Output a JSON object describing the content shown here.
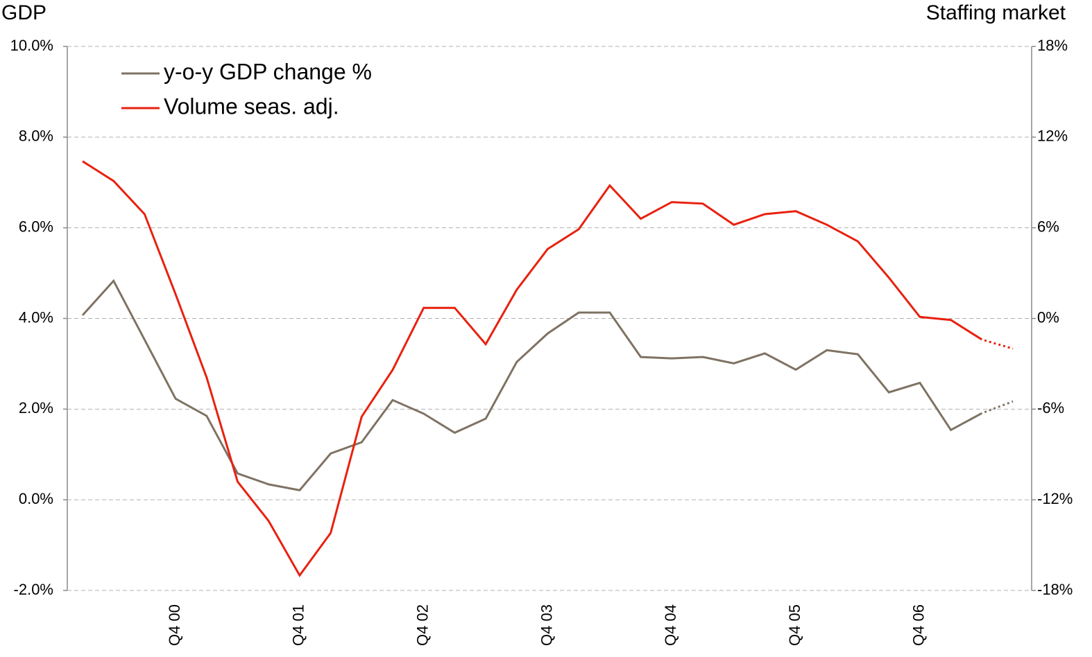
{
  "chart_data": {
    "type": "line",
    "y_title": "GDP",
    "y2_title": "Staffing market",
    "categories": [
      null,
      null,
      null,
      "Q4 00",
      null,
      null,
      null,
      "Q4 01",
      null,
      null,
      null,
      "Q4 02",
      null,
      null,
      null,
      "Q4 03",
      null,
      null,
      null,
      "Q4 04",
      null,
      null,
      null,
      "Q4 05",
      null,
      null,
      null,
      "Q4 06",
      null,
      null,
      null
    ],
    "series": [
      {
        "name": "y-o-y GDP change %",
        "color": "#7f7263",
        "values": [
          4.07,
          4.83,
          3.53,
          2.23,
          1.85,
          0.58,
          0.34,
          0.21,
          1.02,
          1.27,
          2.2,
          1.9,
          1.48,
          1.79,
          3.04,
          3.67,
          4.13,
          4.13,
          3.15,
          3.12,
          3.15,
          3.01,
          3.23,
          2.87,
          3.3,
          3.21,
          2.37,
          2.58,
          1.54,
          1.91,
          2.17
        ]
      },
      {
        "name": "Volume seas. adj.",
        "color": "#e8210f",
        "axis": "y2",
        "values": [
          10.4,
          9.1,
          6.9,
          1.6,
          -3.9,
          -10.8,
          -13.4,
          -17.0,
          -14.2,
          -6.5,
          -3.4,
          0.7,
          0.7,
          -1.7,
          1.9,
          4.6,
          5.9,
          8.8,
          6.6,
          7.7,
          7.6,
          6.2,
          6.9,
          7.1,
          6.2,
          5.1,
          2.7,
          0.1,
          -0.1,
          -1.4,
          -2.0
        ]
      }
    ],
    "ylim": [
      -2,
      10
    ],
    "yticks": [
      {
        "value": -2,
        "label": "-2.0%"
      },
      {
        "value": 0,
        "label": "0.0%"
      },
      {
        "value": 2,
        "label": "2.0%"
      },
      {
        "value": 4,
        "label": "4.0%"
      },
      {
        "value": 6,
        "label": "6.0%"
      },
      {
        "value": 8,
        "label": "8.0%"
      },
      {
        "value": 10,
        "label": "10.0%"
      }
    ],
    "y2lim": [
      -18,
      18
    ],
    "y2ticks": [
      {
        "value": -18,
        "label": "-18%"
      },
      {
        "value": -12,
        "label": "-12%"
      },
      {
        "value": -6,
        "label": "-6%"
      },
      {
        "value": 0,
        "label": "0%"
      },
      {
        "value": 6,
        "label": "6%"
      },
      {
        "value": 12,
        "label": "12%"
      },
      {
        "value": 18,
        "label": "18%"
      }
    ],
    "grid": true,
    "legend": "upper left"
  }
}
